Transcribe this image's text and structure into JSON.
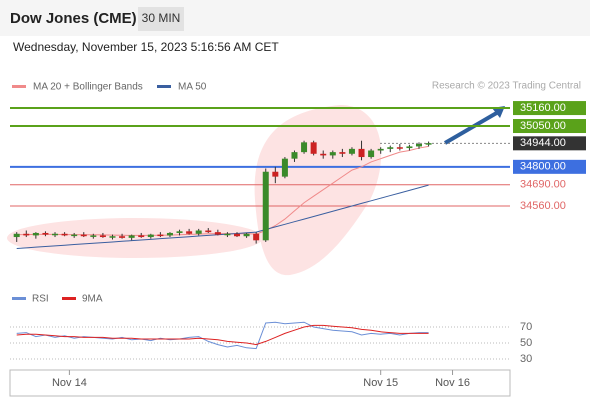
{
  "chart_data": {
    "type": "candlestick",
    "title": "Dow Jones (CME)",
    "interval": "30 MIN",
    "subtitle": "Wednesday, November 15, 2023 5:16:56 AM CET",
    "credit": "Research © 2023 Trading Central",
    "ylim": [
      34260,
      35240
    ],
    "xlim": [
      -0.7,
      51.5
    ],
    "xticks": [
      {
        "value": 5.5,
        "label": "Nov 14"
      },
      {
        "value": 38,
        "label": "Nov 15"
      },
      {
        "value": 45.5,
        "label": "Nov 16"
      }
    ],
    "up_color": "#3a8a2a",
    "down_color": "#cc2222",
    "candles": [
      {
        "open": 34370,
        "high": 34400,
        "low": 34340,
        "close": 34390
      },
      {
        "open": 34390,
        "high": 34410,
        "low": 34370,
        "close": 34380
      },
      {
        "open": 34380,
        "high": 34400,
        "low": 34360,
        "close": 34395
      },
      {
        "open": 34395,
        "high": 34405,
        "low": 34375,
        "close": 34385
      },
      {
        "open": 34385,
        "high": 34400,
        "low": 34370,
        "close": 34390
      },
      {
        "open": 34390,
        "high": 34400,
        "low": 34375,
        "close": 34380
      },
      {
        "open": 34380,
        "high": 34395,
        "low": 34365,
        "close": 34385
      },
      {
        "open": 34385,
        "high": 34400,
        "low": 34370,
        "close": 34375
      },
      {
        "open": 34375,
        "high": 34390,
        "low": 34360,
        "close": 34380
      },
      {
        "open": 34380,
        "high": 34395,
        "low": 34365,
        "close": 34370
      },
      {
        "open": 34370,
        "high": 34385,
        "low": 34355,
        "close": 34375
      },
      {
        "open": 34375,
        "high": 34390,
        "low": 34360,
        "close": 34365
      },
      {
        "open": 34365,
        "high": 34385,
        "low": 34350,
        "close": 34380
      },
      {
        "open": 34380,
        "high": 34395,
        "low": 34365,
        "close": 34370
      },
      {
        "open": 34370,
        "high": 34390,
        "low": 34360,
        "close": 34385
      },
      {
        "open": 34385,
        "high": 34400,
        "low": 34370,
        "close": 34380
      },
      {
        "open": 34380,
        "high": 34400,
        "low": 34370,
        "close": 34395
      },
      {
        "open": 34395,
        "high": 34415,
        "low": 34380,
        "close": 34405
      },
      {
        "open": 34405,
        "high": 34420,
        "low": 34385,
        "close": 34390
      },
      {
        "open": 34390,
        "high": 34420,
        "low": 34380,
        "close": 34410
      },
      {
        "open": 34410,
        "high": 34425,
        "low": 34395,
        "close": 34400
      },
      {
        "open": 34400,
        "high": 34415,
        "low": 34380,
        "close": 34385
      },
      {
        "open": 34385,
        "high": 34400,
        "low": 34370,
        "close": 34390
      },
      {
        "open": 34390,
        "high": 34400,
        "low": 34370,
        "close": 34375
      },
      {
        "open": 34375,
        "high": 34395,
        "low": 34365,
        "close": 34390
      },
      {
        "open": 34390,
        "high": 34400,
        "low": 34330,
        "close": 34350
      },
      {
        "open": 34350,
        "high": 34790,
        "low": 34340,
        "close": 34770
      },
      {
        "open": 34770,
        "high": 34800,
        "low": 34700,
        "close": 34740
      },
      {
        "open": 34740,
        "high": 34860,
        "low": 34730,
        "close": 34850
      },
      {
        "open": 34850,
        "high": 34900,
        "low": 34830,
        "close": 34890
      },
      {
        "open": 34890,
        "high": 34960,
        "low": 34880,
        "close": 34950
      },
      {
        "open": 34950,
        "high": 34960,
        "low": 34870,
        "close": 34880
      },
      {
        "open": 34880,
        "high": 34900,
        "low": 34850,
        "close": 34870
      },
      {
        "open": 34870,
        "high": 34900,
        "low": 34850,
        "close": 34890
      },
      {
        "open": 34890,
        "high": 34910,
        "low": 34860,
        "close": 34880
      },
      {
        "open": 34880,
        "high": 34920,
        "low": 34870,
        "close": 34910
      },
      {
        "open": 34910,
        "high": 34960,
        "low": 34840,
        "close": 34860
      },
      {
        "open": 34860,
        "high": 34910,
        "low": 34850,
        "close": 34900
      },
      {
        "open": 34900,
        "high": 34920,
        "low": 34880,
        "close": 34910
      },
      {
        "open": 34910,
        "high": 34930,
        "low": 34890,
        "close": 34920
      },
      {
        "open": 34920,
        "high": 34940,
        "low": 34900,
        "close": 34915
      },
      {
        "open": 34915,
        "high": 34935,
        "low": 34900,
        "close": 34925
      },
      {
        "open": 34925,
        "high": 34950,
        "low": 34910,
        "close": 34940
      },
      {
        "open": 34940,
        "high": 34955,
        "low": 34925,
        "close": 34945
      }
    ],
    "series": [
      {
        "name": "MA 20 + Bollinger Bands",
        "color": "#f08a8a",
        "values": [
          34385,
          34385,
          34386,
          34386,
          34386,
          34385,
          34385,
          34384,
          34384,
          34383,
          34382,
          34381,
          34380,
          34380,
          34380,
          34381,
          34382,
          34384,
          34386,
          34388,
          34390,
          34391,
          34391,
          34390,
          34390,
          34388,
          34410,
          34440,
          34480,
          34530,
          34580,
          34620,
          34660,
          34700,
          34740,
          34780,
          34800,
          34830,
          34850,
          34870,
          34890,
          34900,
          34915,
          34925
        ]
      },
      {
        "name": "MA 50",
        "color": "#3a5fa0",
        "values": [
          34300,
          34304,
          34308,
          34312,
          34316,
          34320,
          34324,
          34328,
          34332,
          34336,
          34340,
          34344,
          34348,
          34352,
          34356,
          34360,
          34364,
          34368,
          34372,
          34376,
          34380,
          34384,
          34388,
          34392,
          34396,
          34400,
          34416,
          34432,
          34448,
          34464,
          34480,
          34496,
          34512,
          34528,
          34544,
          34560,
          34576,
          34592,
          34608,
          34624,
          34640,
          34656,
          34672,
          34688
        ]
      }
    ],
    "levels": [
      {
        "value": 35160,
        "label": "35160.00",
        "color": "#5aa21a"
      },
      {
        "value": 35050,
        "label": "35050.00",
        "color": "#5aa21a"
      },
      {
        "value": 34944,
        "label": "34944.00",
        "color": "#333333"
      },
      {
        "value": 34800,
        "label": "34800.00",
        "color": "#3d6fe0"
      },
      {
        "value": 34690,
        "label": "34690.00",
        "color": "#e06666"
      },
      {
        "value": 34560,
        "label": "34560.00",
        "color": "#e06666"
      }
    ],
    "rsi": {
      "ylim": [
        15,
        85
      ],
      "yticks": [
        70,
        50,
        30
      ],
      "series": [
        {
          "name": "RSI",
          "color": "#6b8fd6",
          "values": [
            62,
            63,
            58,
            60,
            57,
            59,
            56,
            58,
            57,
            56,
            55,
            57,
            54,
            55,
            53,
            56,
            54,
            55,
            57,
            58,
            52,
            48,
            45,
            47,
            44,
            43,
            75,
            76,
            74,
            75,
            76,
            70,
            68,
            66,
            65,
            64,
            60,
            62,
            61,
            62,
            60,
            62,
            63,
            63
          ]
        },
        {
          "name": "9MA",
          "color": "#dd2222",
          "values": [
            60,
            61,
            61,
            60,
            59,
            58,
            58,
            57,
            57,
            57,
            56,
            56,
            56,
            55,
            55,
            55,
            55,
            55,
            55,
            56,
            55,
            54,
            52,
            51,
            50,
            48,
            52,
            57,
            62,
            66,
            70,
            72,
            72,
            71,
            70,
            69,
            67,
            66,
            64,
            63,
            62,
            62,
            62,
            62
          ]
        }
      ]
    }
  }
}
